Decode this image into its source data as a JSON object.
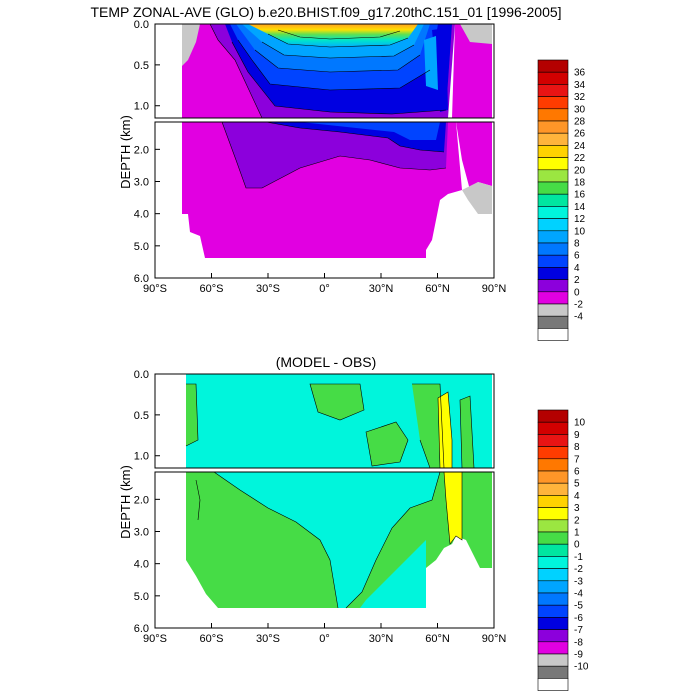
{
  "chart_data": [
    {
      "type": "contour",
      "title": "TEMP ZONAL-AVE (GLO) b.e20.BHIST.f09_g17.20thC.151_01 [1996-2005]",
      "ylabel": "DEPTH (km)",
      "xlim": [
        -90,
        90
      ],
      "ylim": [
        6.0,
        0.0
      ],
      "y_axis_break_at": 1.15,
      "x_ticks": [
        "90°S",
        "60°S",
        "30°S",
        "0°",
        "30°N",
        "60°N",
        "90°N"
      ],
      "y_ticks_upper": [
        "0.0",
        "0.5",
        "1.0"
      ],
      "y_ticks_lower": [
        "2.0",
        "3.0",
        "4.0",
        "5.0",
        "6.0"
      ],
      "colorbar_labels": [
        "36",
        "34",
        "32",
        "30",
        "28",
        "26",
        "24",
        "22",
        "20",
        "18",
        "16",
        "14",
        "12",
        "10",
        "8",
        "6",
        "4",
        "2",
        "0",
        "-2",
        "-4"
      ],
      "colorbar_colors": [
        "#b40000",
        "#d20000",
        "#e81414",
        "#ff3c00",
        "#ff7800",
        "#ff9628",
        "#ffb43c",
        "#ffd200",
        "#ffff00",
        "#9be641",
        "#46dc46",
        "#00e6a0",
        "#00f5dc",
        "#00d2ff",
        "#00a5ff",
        "#0078ff",
        "#0044ff",
        "#0000e1",
        "#8c00dc",
        "#e100e1",
        "#c8c8c8",
        "#787878",
        "#ffffff"
      ]
    },
    {
      "type": "contour",
      "title": "(MODEL - OBS)",
      "ylabel": "DEPTH (km)",
      "xlim": [
        -90,
        90
      ],
      "ylim": [
        6.0,
        0.0
      ],
      "y_axis_break_at": 1.15,
      "x_ticks": [
        "90°S",
        "60°S",
        "30°S",
        "0°",
        "30°N",
        "60°N",
        "90°N"
      ],
      "y_ticks_upper": [
        "0.0",
        "0.5",
        "1.0"
      ],
      "y_ticks_lower": [
        "2.0",
        "3.0",
        "4.0",
        "5.0",
        "6.0"
      ],
      "colorbar_labels": [
        "10",
        "9",
        "8",
        "7",
        "6",
        "5",
        "4",
        "3",
        "2",
        "1",
        "0",
        "-1",
        "-2",
        "-3",
        "-4",
        "-5",
        "-6",
        "-7",
        "-8",
        "-9",
        "-10"
      ],
      "colorbar_colors": [
        "#b40000",
        "#d20000",
        "#e81414",
        "#ff3c00",
        "#ff7800",
        "#ff9628",
        "#ffb43c",
        "#ffd200",
        "#ffff00",
        "#9be641",
        "#46dc46",
        "#00e6a0",
        "#00f5dc",
        "#00d2ff",
        "#00a5ff",
        "#0078ff",
        "#0044ff",
        "#0000e1",
        "#8c00dc",
        "#e100e1",
        "#c8c8c8",
        "#787878",
        "#ffffff"
      ]
    }
  ]
}
